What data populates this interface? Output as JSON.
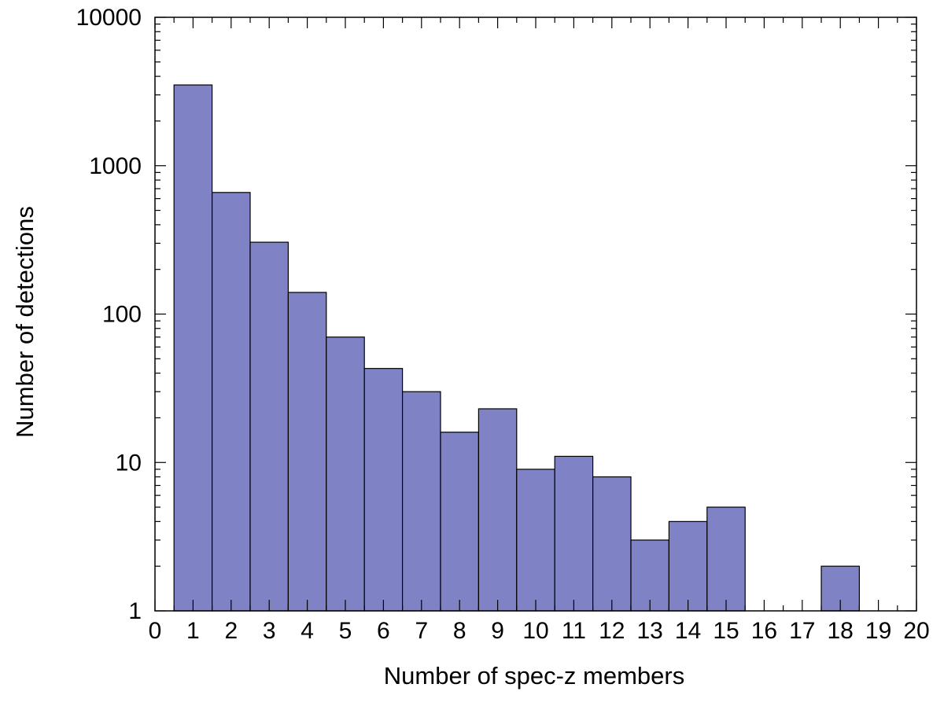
{
  "chart_data": {
    "type": "bar",
    "title": "",
    "xlabel": "Number of spec-z members",
    "ylabel": "Number of detections",
    "xlim": [
      0,
      20
    ],
    "ylim": [
      1,
      10000
    ],
    "y_scale": "log",
    "bar_color": "#7f82c4",
    "edge_color": "#000000",
    "grid": false,
    "x_ticks": [
      "0",
      "1",
      "2",
      "3",
      "4",
      "5",
      "6",
      "7",
      "8",
      "9",
      "10",
      "11",
      "12",
      "13",
      "14",
      "15",
      "16",
      "17",
      "18",
      "19",
      "20"
    ],
    "y_ticks": [
      "1",
      "10",
      "100",
      "1000",
      "10000"
    ],
    "bins": [
      {
        "x": 1,
        "value": 3500
      },
      {
        "x": 2,
        "value": 660
      },
      {
        "x": 3,
        "value": 305
      },
      {
        "x": 4,
        "value": 140
      },
      {
        "x": 5,
        "value": 70
      },
      {
        "x": 6,
        "value": 43
      },
      {
        "x": 7,
        "value": 30
      },
      {
        "x": 8,
        "value": 16
      },
      {
        "x": 9,
        "value": 23
      },
      {
        "x": 10,
        "value": 9
      },
      {
        "x": 11,
        "value": 11
      },
      {
        "x": 12,
        "value": 8
      },
      {
        "x": 13,
        "value": 3
      },
      {
        "x": 14,
        "value": 4
      },
      {
        "x": 15,
        "value": 5
      },
      {
        "x": 18,
        "value": 2
      }
    ]
  }
}
